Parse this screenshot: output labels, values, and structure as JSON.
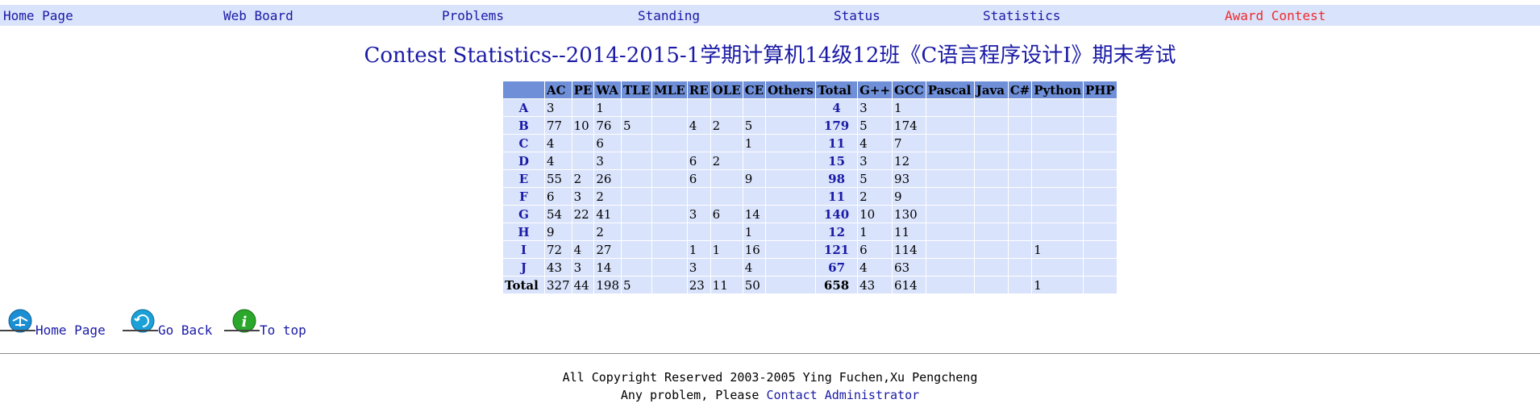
{
  "nav": {
    "home": "Home Page",
    "webboard": "Web Board",
    "problems": "Problems",
    "standing": "Standing",
    "status": "Status",
    "statistics": "Statistics",
    "award": "Award Contest"
  },
  "colors": {
    "link": "#1a1aa6",
    "award": "#ef2b2b",
    "nav_bg": "#d9e3fb",
    "header_bg": "#6f8fd8",
    "cell_bg": "#d9e3fb"
  },
  "title": "Contest Statistics--2014-2015-1学期计算机14级12班《C语言程序设计I》期末考试",
  "table": {
    "columns": [
      "",
      "AC",
      "PE",
      "WA",
      "TLE",
      "MLE",
      "RE",
      "OLE",
      "CE",
      "Others",
      "Total",
      "G++",
      "GCC",
      "Pascal",
      "Java",
      "C#",
      "Python",
      "PHP"
    ],
    "rows": [
      [
        "A",
        "3",
        "",
        "1",
        "",
        "",
        "",
        "",
        "",
        "",
        "4",
        "3",
        "1",
        "",
        "",
        "",
        "",
        ""
      ],
      [
        "B",
        "77",
        "10",
        "76",
        "5",
        "",
        "4",
        "2",
        "5",
        "",
        "179",
        "5",
        "174",
        "",
        "",
        "",
        "",
        ""
      ],
      [
        "C",
        "4",
        "",
        "6",
        "",
        "",
        "",
        "",
        "1",
        "",
        "11",
        "4",
        "7",
        "",
        "",
        "",
        "",
        ""
      ],
      [
        "D",
        "4",
        "",
        "3",
        "",
        "",
        "6",
        "2",
        "",
        "",
        "15",
        "3",
        "12",
        "",
        "",
        "",
        "",
        ""
      ],
      [
        "E",
        "55",
        "2",
        "26",
        "",
        "",
        "6",
        "",
        "9",
        "",
        "98",
        "5",
        "93",
        "",
        "",
        "",
        "",
        ""
      ],
      [
        "F",
        "6",
        "3",
        "2",
        "",
        "",
        "",
        "",
        "",
        "",
        "11",
        "2",
        "9",
        "",
        "",
        "",
        "",
        ""
      ],
      [
        "G",
        "54",
        "22",
        "41",
        "",
        "",
        "3",
        "6",
        "14",
        "",
        "140",
        "10",
        "130",
        "",
        "",
        "",
        "",
        ""
      ],
      [
        "H",
        "9",
        "",
        "2",
        "",
        "",
        "",
        "",
        "1",
        "",
        "12",
        "1",
        "11",
        "",
        "",
        "",
        "",
        ""
      ],
      [
        "I",
        "72",
        "4",
        "27",
        "",
        "",
        "1",
        "1",
        "16",
        "",
        "121",
        "6",
        "114",
        "",
        "",
        "",
        "1",
        ""
      ],
      [
        "J",
        "43",
        "3",
        "14",
        "",
        "",
        "3",
        "",
        "4",
        "",
        "67",
        "4",
        "63",
        "",
        "",
        "",
        "",
        ""
      ]
    ],
    "total_row": [
      "Total",
      "327",
      "44",
      "198",
      "5",
      "",
      "23",
      "11",
      "50",
      "",
      "658",
      "43",
      "614",
      "",
      "",
      "",
      "1",
      ""
    ]
  },
  "bottom": {
    "home": "Home Page",
    "back": "Go Back",
    "top": "To top"
  },
  "footer": {
    "copyright": "All Copyright Reserved 2003-2005 Ying Fuchen,Xu Pengcheng",
    "problem_prefix": "Any problem, Please ",
    "contact": "Contact Administrator"
  }
}
